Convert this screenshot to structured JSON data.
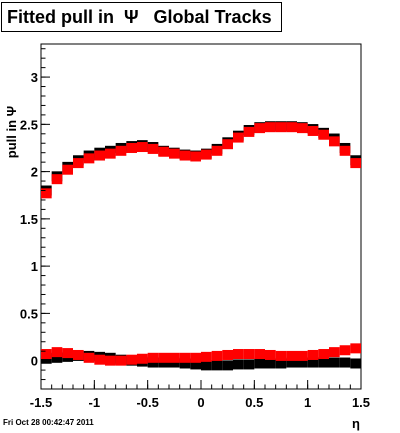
{
  "chart_data": {
    "type": "scatter",
    "title": "Fitted pull in  Ψ   Global Tracks",
    "xlabel": "η",
    "ylabel": "pull in Ψ",
    "xlim": [
      -1.5,
      1.5
    ],
    "ylim": [
      -0.3,
      3.35
    ],
    "xticks": [
      "-1.5",
      "-1",
      "-0.5",
      "0",
      "0.5",
      "1",
      "1.5"
    ],
    "yticks": [
      "0",
      "0.5",
      "1",
      "1.5",
      "2",
      "2.5",
      "3"
    ],
    "grid": false,
    "colors": {
      "black_series": "#000000",
      "red_series": "#ff0000"
    },
    "series": [
      {
        "color": "black",
        "role": "sigma",
        "x": [
          -1.45,
          -1.35,
          -1.25,
          -1.15,
          -1.05,
          -0.95,
          -0.85,
          -0.75,
          -0.65,
          -0.55,
          -0.45,
          -0.35,
          -0.25,
          -0.15,
          -0.05,
          0.05,
          0.15,
          0.25,
          0.35,
          0.45,
          0.55,
          0.65,
          0.75,
          0.85,
          0.95,
          1.05,
          1.15,
          1.25,
          1.35,
          1.45
        ],
        "values": [
          1.8,
          1.95,
          2.05,
          2.12,
          2.17,
          2.2,
          2.22,
          2.25,
          2.27,
          2.28,
          2.26,
          2.22,
          2.2,
          2.18,
          2.17,
          2.19,
          2.24,
          2.31,
          2.38,
          2.44,
          2.47,
          2.48,
          2.48,
          2.48,
          2.47,
          2.45,
          2.41,
          2.35,
          2.25,
          2.12
        ]
      },
      {
        "color": "red",
        "role": "sigma",
        "x": [
          -1.45,
          -1.35,
          -1.25,
          -1.15,
          -1.05,
          -0.95,
          -0.85,
          -0.75,
          -0.65,
          -0.55,
          -0.45,
          -0.35,
          -0.25,
          -0.15,
          -0.05,
          0.05,
          0.15,
          0.25,
          0.35,
          0.45,
          0.55,
          0.65,
          0.75,
          0.85,
          0.95,
          1.05,
          1.15,
          1.25,
          1.35,
          1.45
        ],
        "values": [
          1.77,
          1.92,
          2.02,
          2.09,
          2.14,
          2.17,
          2.19,
          2.22,
          2.25,
          2.26,
          2.24,
          2.21,
          2.19,
          2.17,
          2.16,
          2.18,
          2.22,
          2.29,
          2.36,
          2.42,
          2.46,
          2.47,
          2.47,
          2.47,
          2.46,
          2.43,
          2.39,
          2.32,
          2.22,
          2.09
        ]
      },
      {
        "color": "black",
        "role": "mean",
        "x": [
          -1.45,
          -1.35,
          -1.25,
          -1.15,
          -1.05,
          -0.95,
          -0.85,
          -0.75,
          -0.65,
          -0.55,
          -0.45,
          -0.35,
          -0.25,
          -0.15,
          -0.05,
          0.05,
          0.15,
          0.25,
          0.35,
          0.45,
          0.55,
          0.65,
          0.75,
          0.85,
          0.95,
          1.05,
          1.15,
          1.25,
          1.35,
          1.45
        ],
        "values": [
          0.02,
          0.03,
          0.04,
          0.05,
          0.05,
          0.04,
          0.03,
          0.01,
          0.0,
          -0.01,
          -0.02,
          -0.02,
          -0.02,
          -0.03,
          -0.04,
          -0.05,
          -0.05,
          -0.05,
          -0.04,
          -0.04,
          -0.03,
          -0.03,
          -0.03,
          -0.02,
          -0.02,
          -0.02,
          -0.02,
          -0.02,
          -0.02,
          -0.03
        ]
      },
      {
        "color": "red",
        "role": "mean",
        "x": [
          -1.45,
          -1.35,
          -1.25,
          -1.15,
          -1.05,
          -0.95,
          -0.85,
          -0.75,
          -0.65,
          -0.55,
          -0.45,
          -0.35,
          -0.25,
          -0.15,
          -0.05,
          0.05,
          0.15,
          0.25,
          0.35,
          0.45,
          0.55,
          0.65,
          0.75,
          0.85,
          0.95,
          1.05,
          1.15,
          1.25,
          1.35,
          1.45
        ],
        "values": [
          0.07,
          0.09,
          0.08,
          0.06,
          0.03,
          0.01,
          0.0,
          0.0,
          0.01,
          0.02,
          0.03,
          0.03,
          0.03,
          0.03,
          0.03,
          0.04,
          0.05,
          0.06,
          0.07,
          0.07,
          0.07,
          0.06,
          0.05,
          0.05,
          0.05,
          0.06,
          0.07,
          0.09,
          0.11,
          0.13
        ]
      }
    ]
  },
  "timestamp": "Fri Oct 28 00:42:47 2011"
}
